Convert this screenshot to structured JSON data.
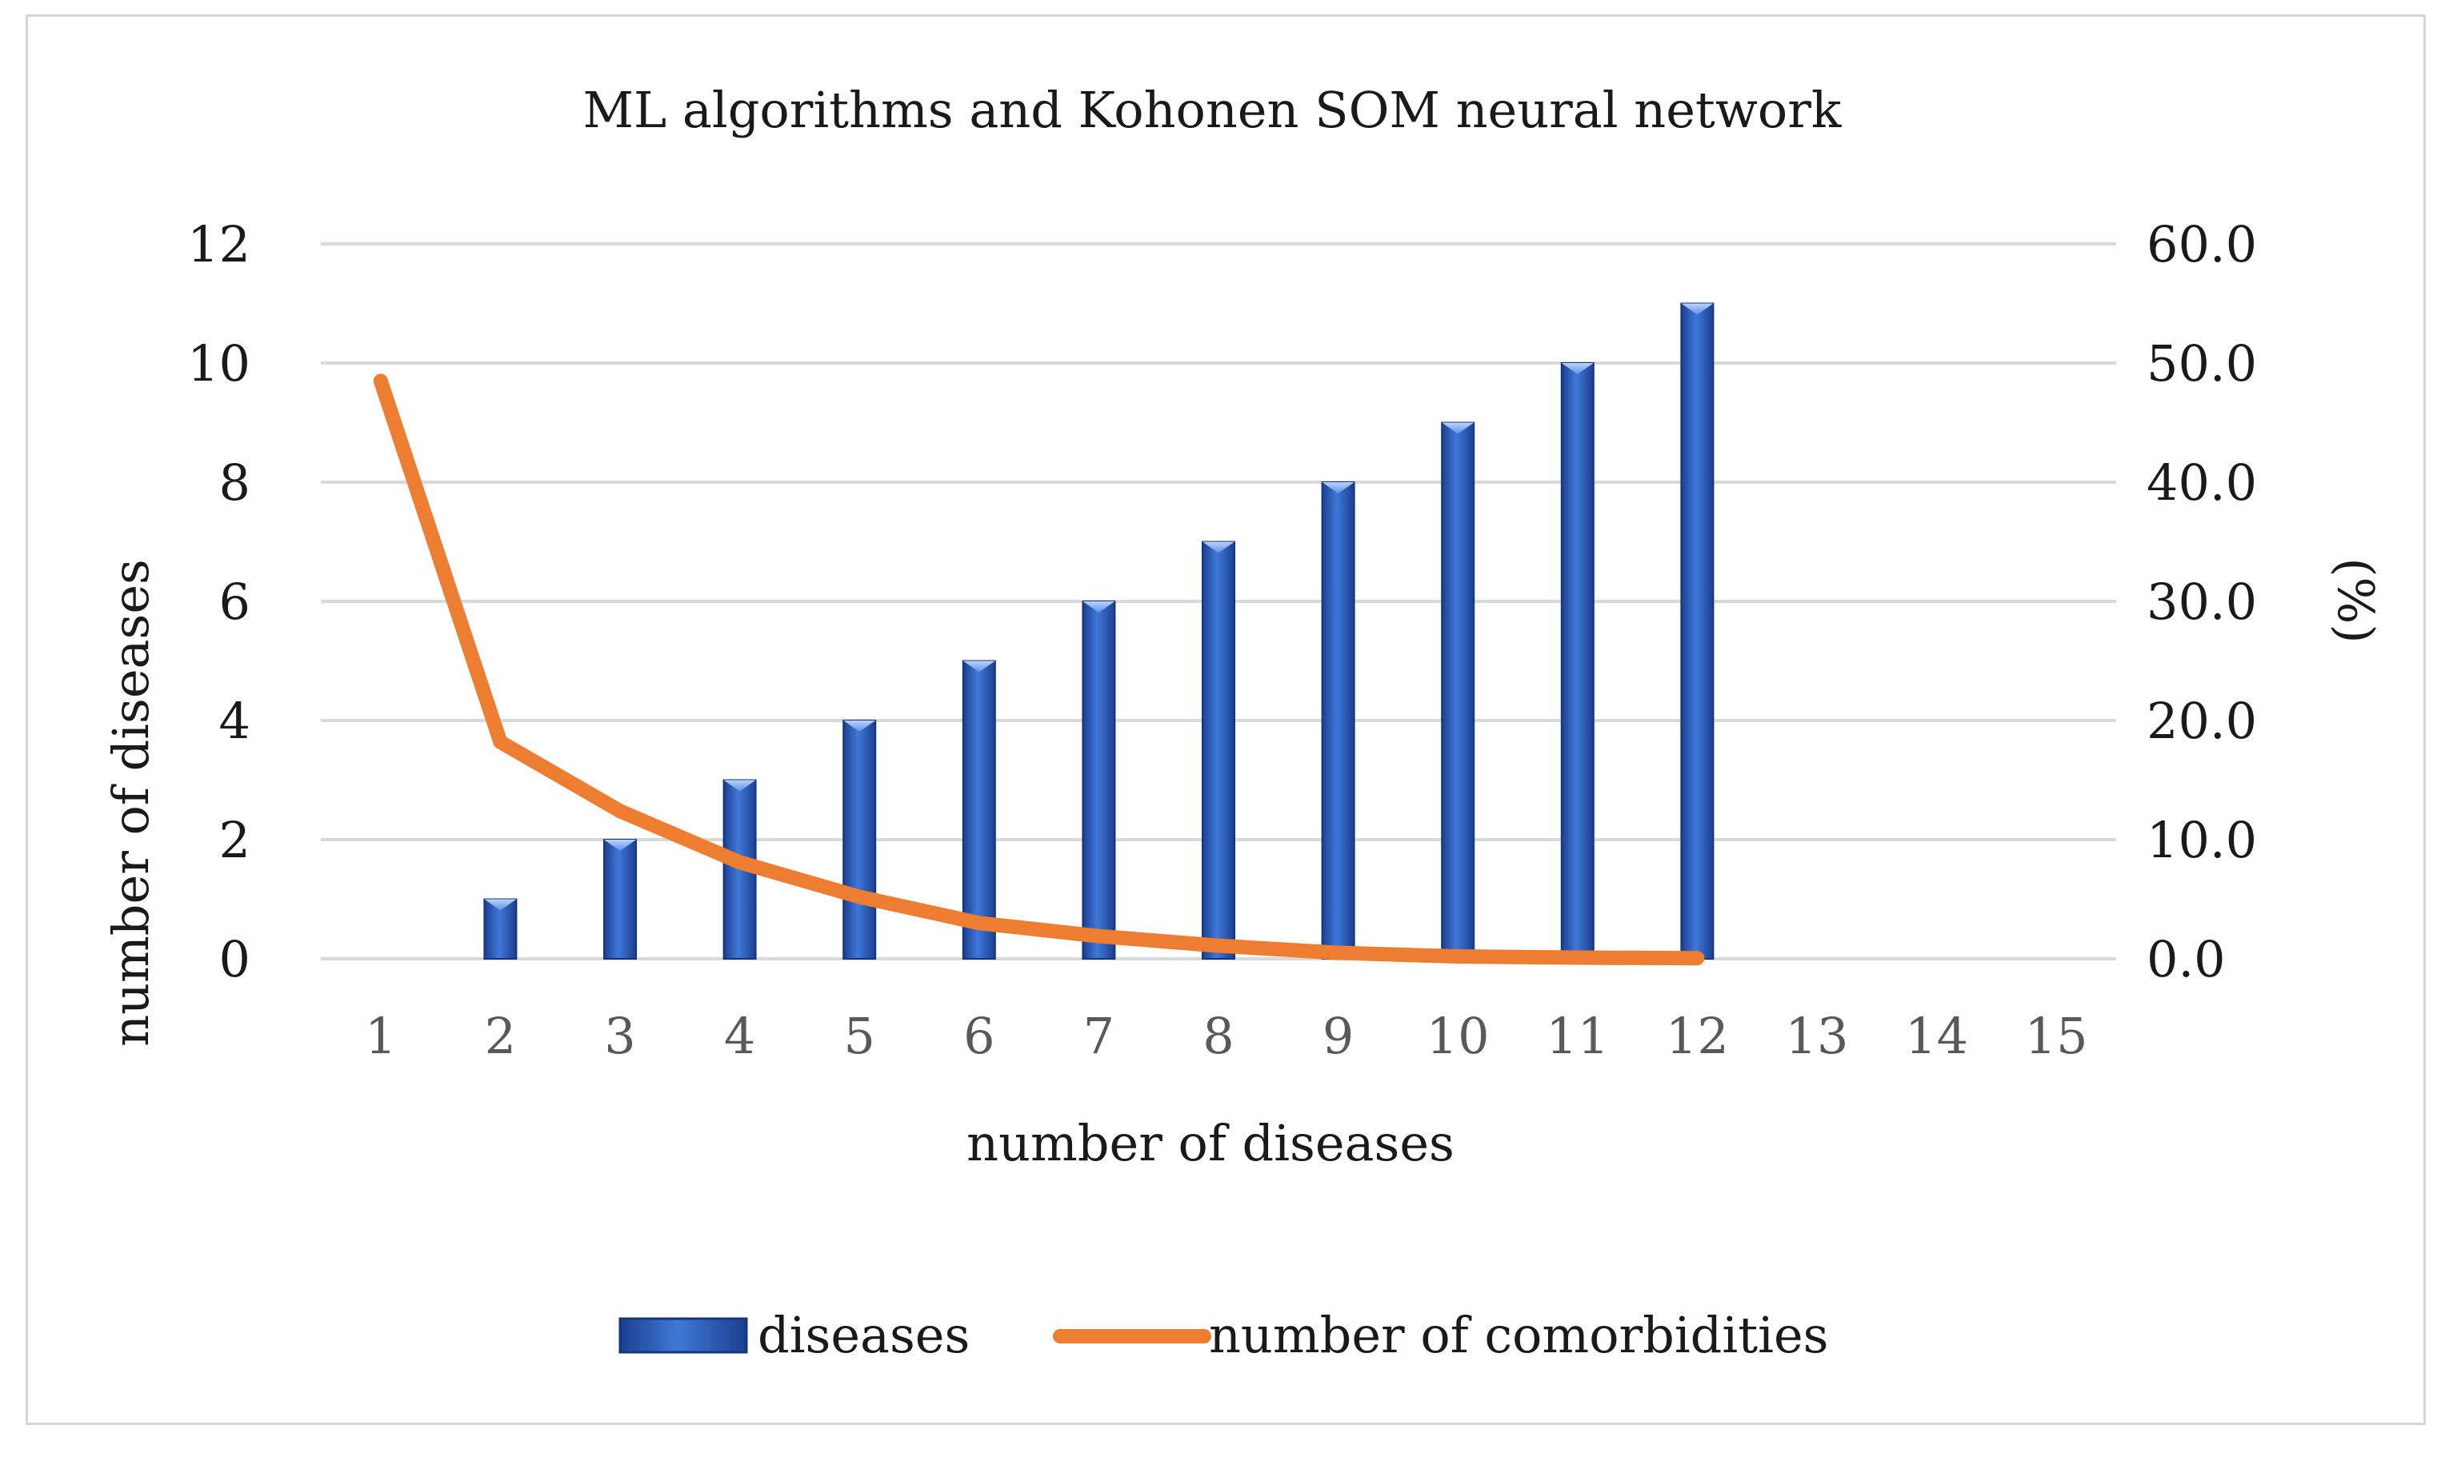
{
  "chart_data": {
    "type": "bar+line",
    "title": "ML algorithms and Kohonen SOM neural network",
    "xlabel": "number of diseases",
    "ylabel_left": "number of diseases",
    "ylabel_right": "(%)",
    "categories": [
      "1",
      "2",
      "3",
      "4",
      "5",
      "6",
      "7",
      "8",
      "9",
      "10",
      "11",
      "12",
      "13",
      "14",
      "15"
    ],
    "y_left": {
      "min": 0,
      "max": 12,
      "step": 2,
      "ticks": [
        "0",
        "2",
        "4",
        "6",
        "8",
        "10",
        "12"
      ]
    },
    "y_right": {
      "min": 0,
      "max": 60,
      "step": 10,
      "ticks": [
        "0.0",
        "10.0",
        "20.0",
        "30.0",
        "40.0",
        "50.0",
        "60.0"
      ]
    },
    "grid": true,
    "legend_position": "bottom",
    "series": [
      {
        "name": "diseases",
        "type": "bar",
        "axis": "left",
        "color": "#2f5fbe",
        "values": [
          0,
          1,
          2,
          3,
          4,
          5,
          6,
          7,
          8,
          9,
          10,
          11,
          null,
          null,
          null
        ]
      },
      {
        "name": "number of comorbidities",
        "type": "line",
        "axis": "right",
        "color": "#ed7d31",
        "values": [
          48.5,
          18.2,
          12.4,
          8.1,
          5.2,
          3.0,
          1.9,
          1.1,
          0.5,
          0.2,
          0.1,
          0.05,
          null,
          null,
          null
        ]
      }
    ]
  }
}
